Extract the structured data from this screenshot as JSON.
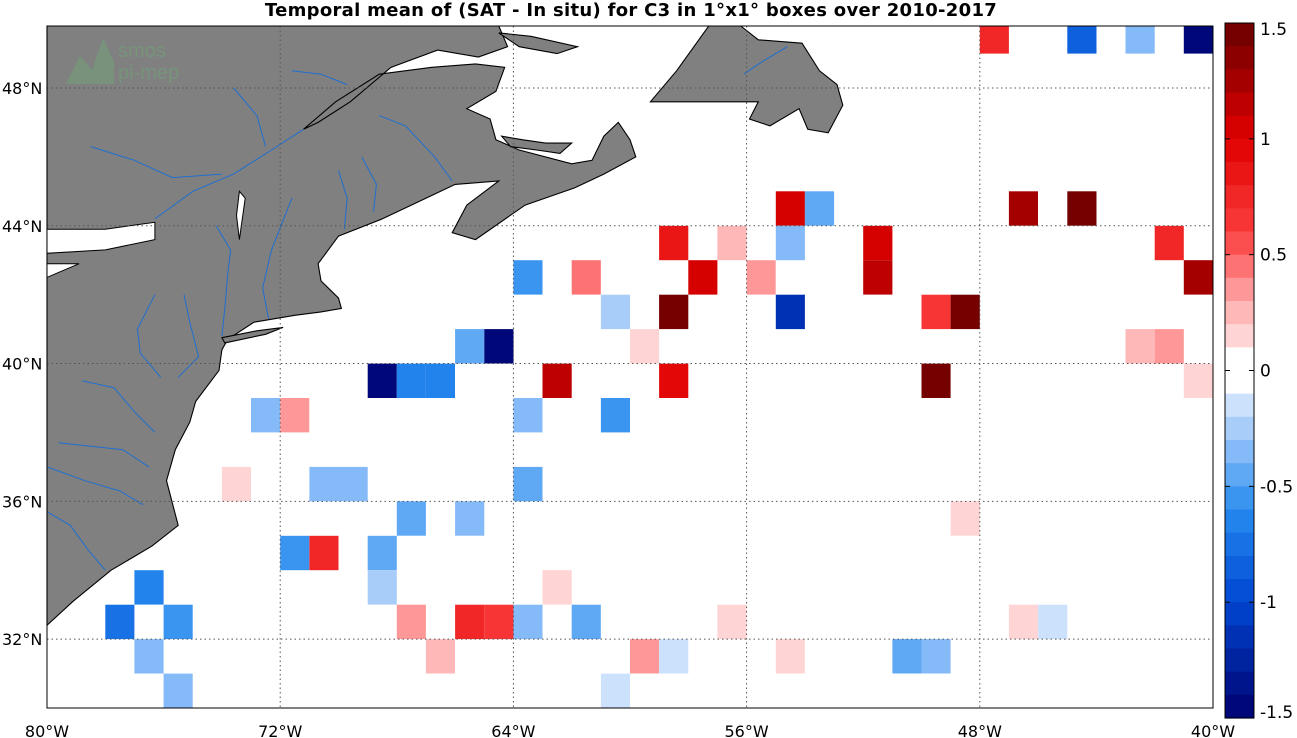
{
  "title": "Temporal mean of (SAT - In situ) for C3 in 1°x1° boxes over 2010-2017",
  "watermark": {
    "line1": "smos",
    "line2": "pi-mep"
  },
  "colors": {
    "land": "#808080",
    "coast": "#000000",
    "river": "#1f6fd0",
    "grid": "#555555"
  },
  "chart_data": {
    "type": "heatmap",
    "title": "Temporal mean of (SAT - In situ) for C3 in 1°x1° boxes over 2010-2017",
    "lon_range": [
      -80,
      -40
    ],
    "lat_range": [
      30,
      49.8
    ],
    "lon_ticks": [
      -80,
      -72,
      -64,
      -56,
      -48,
      -40
    ],
    "lon_tick_labels": [
      "80°W",
      "72°W",
      "64°W",
      "56°W",
      "48°W",
      "40°W"
    ],
    "lat_ticks": [
      32,
      36,
      40,
      44,
      48
    ],
    "lat_tick_labels": [
      "32°N",
      "36°N",
      "40°N",
      "44°N",
      "48°N"
    ],
    "colorbar": {
      "range": [
        -1.5,
        1.5
      ],
      "levels": 30,
      "ticks": [
        1.5,
        1,
        0.5,
        0,
        -0.5,
        -1,
        -1.5
      ],
      "tick_labels": [
        "1.5",
        "1",
        "0.5",
        "0",
        "-0.5",
        "-1",
        "-1.5"
      ]
    },
    "cells": [
      {
        "lon": -48,
        "lat": 49,
        "value": 0.75
      },
      {
        "lon": -45,
        "lat": 49,
        "value": -0.8
      },
      {
        "lon": -43,
        "lat": 49,
        "value": -0.35
      },
      {
        "lon": -41,
        "lat": 49,
        "value": -1.5
      },
      {
        "lon": -55,
        "lat": 44,
        "value": 1.0
      },
      {
        "lon": -54,
        "lat": 44,
        "value": -0.5
      },
      {
        "lon": -47,
        "lat": 44,
        "value": 1.2
      },
      {
        "lon": -45,
        "lat": 44,
        "value": 1.45
      },
      {
        "lon": -59,
        "lat": 43,
        "value": 0.9
      },
      {
        "lon": -57,
        "lat": 43,
        "value": 0.2
      },
      {
        "lon": -55,
        "lat": 43,
        "value": -0.35
      },
      {
        "lon": -52,
        "lat": 43,
        "value": 1.0
      },
      {
        "lon": -42,
        "lat": 43,
        "value": 0.75
      },
      {
        "lon": -64,
        "lat": 42,
        "value": -0.6
      },
      {
        "lon": -62,
        "lat": 42,
        "value": 0.45
      },
      {
        "lon": -58,
        "lat": 42,
        "value": 1.05
      },
      {
        "lon": -56,
        "lat": 42,
        "value": 0.35
      },
      {
        "lon": -52,
        "lat": 42,
        "value": 1.1
      },
      {
        "lon": -41,
        "lat": 42,
        "value": 1.3
      },
      {
        "lon": -61,
        "lat": 41,
        "value": -0.25
      },
      {
        "lon": -59,
        "lat": 41,
        "value": 1.45
      },
      {
        "lon": -55,
        "lat": 41,
        "value": -1.2
      },
      {
        "lon": -50,
        "lat": 41,
        "value": 0.65
      },
      {
        "lon": -49,
        "lat": 41,
        "value": 1.45
      },
      {
        "lon": -66,
        "lat": 40,
        "value": -0.45
      },
      {
        "lon": -65,
        "lat": 40,
        "value": -1.5
      },
      {
        "lon": -60,
        "lat": 40,
        "value": 0.15
      },
      {
        "lon": -43,
        "lat": 40,
        "value": 0.2
      },
      {
        "lon": -42,
        "lat": 40,
        "value": 0.35
      },
      {
        "lon": -69,
        "lat": 39,
        "value": -1.5
      },
      {
        "lon": -68,
        "lat": 39,
        "value": -0.65
      },
      {
        "lon": -67,
        "lat": 39,
        "value": -0.65
      },
      {
        "lon": -63,
        "lat": 39,
        "value": 1.1
      },
      {
        "lon": -59,
        "lat": 39,
        "value": 0.95
      },
      {
        "lon": -50,
        "lat": 39,
        "value": 1.45
      },
      {
        "lon": -41,
        "lat": 39,
        "value": 0.15
      },
      {
        "lon": -73,
        "lat": 38,
        "value": -0.3
      },
      {
        "lon": -72,
        "lat": 38,
        "value": 0.35
      },
      {
        "lon": -64,
        "lat": 38,
        "value": -0.4
      },
      {
        "lon": -61,
        "lat": 38,
        "value": -0.6
      },
      {
        "lon": -74,
        "lat": 36,
        "value": 0.15
      },
      {
        "lon": -71,
        "lat": 36,
        "value": -0.4
      },
      {
        "lon": -70,
        "lat": 36,
        "value": -0.4
      },
      {
        "lon": -64,
        "lat": 36,
        "value": -0.45
      },
      {
        "lon": -68,
        "lat": 35,
        "value": -0.45
      },
      {
        "lon": -66,
        "lat": 35,
        "value": -0.35
      },
      {
        "lon": -49,
        "lat": 35,
        "value": 0.15
      },
      {
        "lon": -72,
        "lat": 34,
        "value": -0.6
      },
      {
        "lon": -71,
        "lat": 34,
        "value": 0.75
      },
      {
        "lon": -69,
        "lat": 34,
        "value": -0.45
      },
      {
        "lon": -77,
        "lat": 33,
        "value": -0.65
      },
      {
        "lon": -69,
        "lat": 33,
        "value": -0.25
      },
      {
        "lon": -63,
        "lat": 33,
        "value": 0.15
      },
      {
        "lon": -78,
        "lat": 32,
        "value": -0.75
      },
      {
        "lon": -76,
        "lat": 32,
        "value": -0.55
      },
      {
        "lon": -68,
        "lat": 32,
        "value": 0.35
      },
      {
        "lon": -66,
        "lat": 32,
        "value": 0.7
      },
      {
        "lon": -65,
        "lat": 32,
        "value": 0.65
      },
      {
        "lon": -64,
        "lat": 32,
        "value": -0.3
      },
      {
        "lon": -62,
        "lat": 32,
        "value": -0.5
      },
      {
        "lon": -57,
        "lat": 32,
        "value": 0.15
      },
      {
        "lon": -47,
        "lat": 32,
        "value": 0.15
      },
      {
        "lon": -46,
        "lat": 32,
        "value": -0.15
      },
      {
        "lon": -77,
        "lat": 31,
        "value": -0.3
      },
      {
        "lon": -67,
        "lat": 31,
        "value": 0.2
      },
      {
        "lon": -60,
        "lat": 31,
        "value": 0.35
      },
      {
        "lon": -59,
        "lat": 31,
        "value": -0.2
      },
      {
        "lon": -55,
        "lat": 31,
        "value": 0.15
      },
      {
        "lon": -51,
        "lat": 31,
        "value": -0.45
      },
      {
        "lon": -50,
        "lat": 31,
        "value": -0.35
      },
      {
        "lon": -76,
        "lat": 30,
        "value": -0.3
      },
      {
        "lon": -61,
        "lat": 30,
        "value": -0.15
      }
    ]
  }
}
